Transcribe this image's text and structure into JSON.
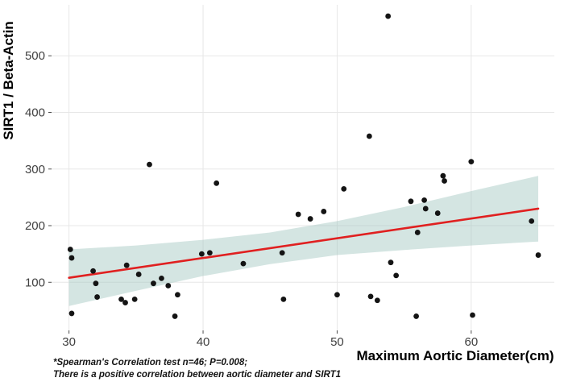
{
  "figure": {
    "background": "#ffffff"
  },
  "footnote": {
    "line1": "*Spearman's Correlation test n=46; P=0.008;",
    "line2": "There is a positive correlation between aortic diameter and SIRT1"
  },
  "chart_data": {
    "type": "scatter",
    "title": "",
    "xlabel": "Maximum Aortic Diameter(cm)",
    "ylabel": "SIRT1 / Beta-Actin",
    "x_domain": [
      28.7,
      66.2
    ],
    "y_domain": [
      15,
      590
    ],
    "x_ticks": [
      30,
      40,
      50,
      60
    ],
    "y_ticks": [
      100,
      200,
      300,
      400,
      500
    ],
    "grid": true,
    "legend": "none",
    "stats_annotation": "Spearman's Correlation test n=46; P=0.008",
    "colors": {
      "point": "#141414",
      "regression_line": "#e02020",
      "confidence_band": "#9fc6bf",
      "gridline": "#e7e7e7"
    },
    "points": [
      [
        30.1,
        158
      ],
      [
        30.2,
        143
      ],
      [
        30.2,
        45
      ],
      [
        31.8,
        120
      ],
      [
        32.0,
        98
      ],
      [
        32.1,
        74
      ],
      [
        33.9,
        70
      ],
      [
        34.2,
        64
      ],
      [
        34.3,
        130
      ],
      [
        34.9,
        70
      ],
      [
        35.2,
        114
      ],
      [
        36.0,
        308
      ],
      [
        36.3,
        98
      ],
      [
        36.9,
        107
      ],
      [
        37.4,
        94
      ],
      [
        37.9,
        40
      ],
      [
        38.1,
        78
      ],
      [
        39.9,
        150
      ],
      [
        40.5,
        152
      ],
      [
        41.0,
        275
      ],
      [
        43.0,
        133
      ],
      [
        45.9,
        152
      ],
      [
        46.0,
        70
      ],
      [
        47.1,
        220
      ],
      [
        48.0,
        212
      ],
      [
        49.0,
        225
      ],
      [
        50.0,
        78
      ],
      [
        50.5,
        265
      ],
      [
        52.4,
        358
      ],
      [
        52.5,
        75
      ],
      [
        53.0,
        68
      ],
      [
        53.8,
        570
      ],
      [
        54.0,
        135
      ],
      [
        54.4,
        112
      ],
      [
        55.5,
        243
      ],
      [
        55.9,
        40
      ],
      [
        56.0,
        188
      ],
      [
        56.5,
        245
      ],
      [
        56.6,
        230
      ],
      [
        57.5,
        222
      ],
      [
        57.9,
        288
      ],
      [
        58.0,
        279
      ],
      [
        60.0,
        313
      ],
      [
        60.1,
        42
      ],
      [
        64.5,
        208
      ],
      [
        65.0,
        148
      ]
    ],
    "regression_line": {
      "x": [
        30,
        65
      ],
      "y": [
        108,
        230
      ]
    },
    "confidence_band": {
      "x": [
        30,
        35,
        40,
        45,
        50,
        55,
        60,
        65
      ],
      "lower": [
        58,
        85,
        111,
        132,
        148,
        157,
        165,
        172
      ],
      "upper": [
        158,
        165,
        175,
        188,
        208,
        233,
        261,
        288
      ],
      "opacity": 0.45
    }
  }
}
